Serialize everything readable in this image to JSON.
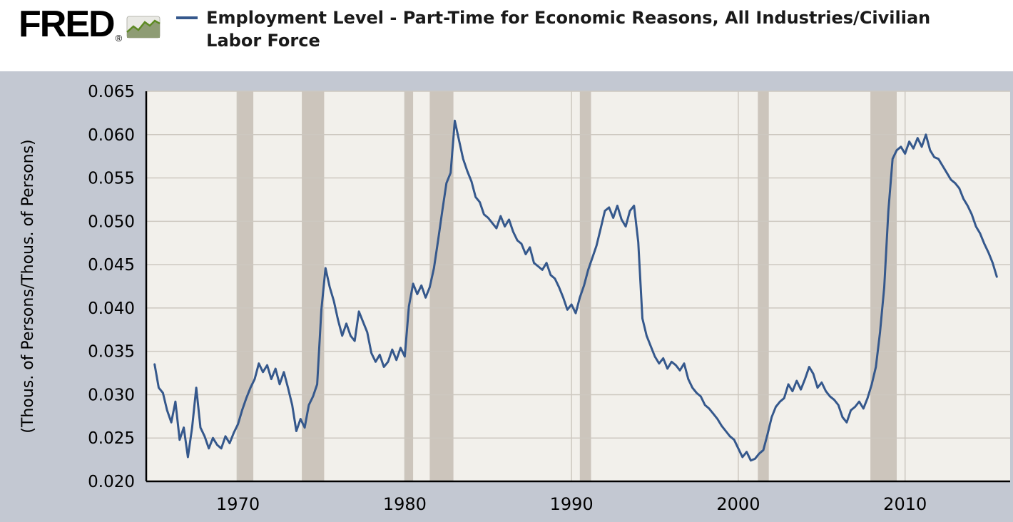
{
  "header": {
    "logo_text": "FRED",
    "logo_registered": "®",
    "title": "Employment Level - Part-Time for Economic Reasons, All Industries/Civilian Labor Force"
  },
  "chart_data": {
    "type": "line",
    "title": "Employment Level - Part-Time for Economic Reasons, All Industries/Civilian Labor Force",
    "xlabel": "",
    "ylabel": "(Thous. of Persons/Thous. of Persons)",
    "legend_position": "top-left",
    "grid": true,
    "x_range": [
      1964.5,
      2016.3
    ],
    "ylim": [
      0.02,
      0.065
    ],
    "x_start": 1965.0,
    "x_interval": 0.25,
    "x_ticks": [
      {
        "value": 1970,
        "label": "1970"
      },
      {
        "value": 1980,
        "label": "1980"
      },
      {
        "value": 1990,
        "label": "1990"
      },
      {
        "value": 2000,
        "label": "2000"
      },
      {
        "value": 2010,
        "label": "2010"
      }
    ],
    "y_ticks": [
      {
        "value": 0.02,
        "label": "0.020"
      },
      {
        "value": 0.025,
        "label": "0.025"
      },
      {
        "value": 0.03,
        "label": "0.030"
      },
      {
        "value": 0.035,
        "label": "0.035"
      },
      {
        "value": 0.04,
        "label": "0.040"
      },
      {
        "value": 0.045,
        "label": "0.045"
      },
      {
        "value": 0.05,
        "label": "0.050"
      },
      {
        "value": 0.055,
        "label": "0.055"
      },
      {
        "value": 0.06,
        "label": "0.060"
      },
      {
        "value": 0.065,
        "label": "0.065"
      }
    ],
    "recession_bands": [
      [
        1969.92,
        1970.92
      ],
      [
        1973.83,
        1975.17
      ],
      [
        1980.0,
        1980.5
      ],
      [
        1981.5,
        1982.92
      ],
      [
        1990.5,
        1991.17
      ],
      [
        2001.17,
        2001.83
      ],
      [
        2007.92,
        2009.5
      ]
    ],
    "colors": {
      "line": "#35588c",
      "plot_bg": "#f2f0eb",
      "outer_bg": "#c3c8d2",
      "recession_band": "#ccc5bc",
      "grid": "#cdc8c0",
      "axis": "#000000",
      "text": "#000000"
    },
    "series": [
      {
        "name": "Employment Level - Part-Time for Economic Reasons, All Industries/Civilian Labor Force",
        "values": [
          0.0335,
          0.0308,
          0.0302,
          0.0282,
          0.0268,
          0.0292,
          0.0248,
          0.0262,
          0.0228,
          0.0262,
          0.0308,
          0.0262,
          0.0252,
          0.0238,
          0.025,
          0.0242,
          0.0238,
          0.0252,
          0.0244,
          0.0256,
          0.0266,
          0.0282,
          0.0296,
          0.0308,
          0.0318,
          0.0336,
          0.0326,
          0.0334,
          0.0318,
          0.033,
          0.0312,
          0.0326,
          0.0308,
          0.0288,
          0.0258,
          0.0272,
          0.0262,
          0.0288,
          0.0298,
          0.0312,
          0.0398,
          0.0446,
          0.0424,
          0.0408,
          0.0386,
          0.0368,
          0.0382,
          0.0368,
          0.0362,
          0.0396,
          0.0384,
          0.0372,
          0.0348,
          0.0338,
          0.0346,
          0.0332,
          0.0338,
          0.0352,
          0.034,
          0.0354,
          0.0344,
          0.0402,
          0.0428,
          0.0416,
          0.0426,
          0.0412,
          0.0424,
          0.0446,
          0.0478,
          0.0512,
          0.0544,
          0.0556,
          0.0616,
          0.0594,
          0.0572,
          0.0558,
          0.0546,
          0.0528,
          0.0522,
          0.0508,
          0.0504,
          0.0498,
          0.0492,
          0.0506,
          0.0494,
          0.0502,
          0.0488,
          0.0478,
          0.0474,
          0.0462,
          0.047,
          0.0452,
          0.0448,
          0.0444,
          0.0452,
          0.0438,
          0.0434,
          0.0424,
          0.0412,
          0.0398,
          0.0404,
          0.0394,
          0.0412,
          0.0426,
          0.0444,
          0.0458,
          0.0472,
          0.0492,
          0.0512,
          0.0516,
          0.0504,
          0.0518,
          0.0502,
          0.0494,
          0.0512,
          0.0518,
          0.0476,
          0.0388,
          0.0368,
          0.0356,
          0.0344,
          0.0336,
          0.0342,
          0.033,
          0.0338,
          0.0334,
          0.0328,
          0.0336,
          0.0318,
          0.0308,
          0.0302,
          0.0298,
          0.0288,
          0.0284,
          0.0278,
          0.0272,
          0.0264,
          0.0258,
          0.0252,
          0.0248,
          0.0238,
          0.0228,
          0.0234,
          0.0224,
          0.0226,
          0.0232,
          0.0236,
          0.0254,
          0.0274,
          0.0286,
          0.0292,
          0.0296,
          0.0312,
          0.0304,
          0.0316,
          0.0306,
          0.0318,
          0.0332,
          0.0324,
          0.0308,
          0.0314,
          0.0304,
          0.0298,
          0.0294,
          0.0288,
          0.0274,
          0.0268,
          0.0282,
          0.0286,
          0.0292,
          0.0284,
          0.0296,
          0.0312,
          0.0332,
          0.0372,
          0.0424,
          0.0512,
          0.0572,
          0.0582,
          0.0586,
          0.0578,
          0.0592,
          0.0584,
          0.0596,
          0.0586,
          0.06,
          0.0582,
          0.0574,
          0.0572,
          0.0564,
          0.0556,
          0.0548,
          0.0544,
          0.0538,
          0.0526,
          0.0518,
          0.0508,
          0.0494,
          0.0486,
          0.0474,
          0.0464,
          0.0452,
          0.0436
        ]
      }
    ]
  }
}
